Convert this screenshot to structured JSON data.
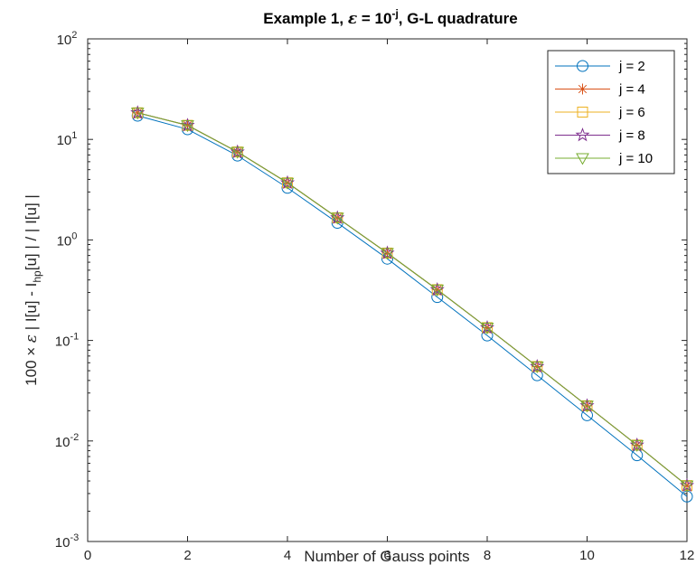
{
  "chart_data": {
    "type": "line",
    "title_parts": [
      "Example 1, ",
      "ε",
      " = 10",
      "-j",
      ", G-L quadrature"
    ],
    "xlabel": "Number of Gauss points",
    "ylabel_parts": [
      "100 × ",
      "ε",
      " | I[u] - I",
      "hp",
      "[u] | / | I[u] |"
    ],
    "xlim": [
      0,
      12
    ],
    "ylim": [
      0.001,
      100
    ],
    "yscale": "log",
    "grid": false,
    "legend_position": "top-right",
    "xticks": [
      0,
      2,
      4,
      6,
      8,
      10,
      12
    ],
    "xtick_labels": [
      "0",
      "2",
      "4",
      "6",
      "8",
      "10",
      "12"
    ],
    "yticks": [
      {
        "value": 0.001,
        "base": "10",
        "exp": "-3"
      },
      {
        "value": 0.01,
        "base": "10",
        "exp": "-2"
      },
      {
        "value": 0.1,
        "base": "10",
        "exp": "-1"
      },
      {
        "value": 1,
        "base": "10",
        "exp": "0"
      },
      {
        "value": 10,
        "base": "10",
        "exp": "1"
      },
      {
        "value": 100,
        "base": "10",
        "exp": "2"
      }
    ],
    "x": [
      1,
      2,
      3,
      4,
      5,
      6,
      7,
      8,
      9,
      10,
      11,
      12
    ],
    "series": [
      {
        "name": "j = 2",
        "color": "#0072BD",
        "marker": "circle",
        "values": [
          17.2,
          12.6,
          6.9,
          3.3,
          1.48,
          0.65,
          0.27,
          0.112,
          0.045,
          0.018,
          0.0072,
          0.0028
        ]
      },
      {
        "name": "j = 4",
        "color": "#D95319",
        "marker": "asterisk",
        "values": [
          18.4,
          13.8,
          7.5,
          3.7,
          1.66,
          0.74,
          0.32,
          0.134,
          0.055,
          0.0224,
          0.0091,
          0.0036
        ]
      },
      {
        "name": "j = 6",
        "color": "#EDB120",
        "marker": "square",
        "values": [
          18.4,
          13.8,
          7.5,
          3.7,
          1.66,
          0.74,
          0.32,
          0.134,
          0.055,
          0.0224,
          0.0091,
          0.0036
        ]
      },
      {
        "name": "j = 8",
        "color": "#7E2F8E",
        "marker": "pentagram",
        "values": [
          18.4,
          13.8,
          7.5,
          3.7,
          1.66,
          0.74,
          0.32,
          0.134,
          0.055,
          0.0224,
          0.0091,
          0.0036
        ]
      },
      {
        "name": "j = 10",
        "color": "#77AC30",
        "marker": "triangle-down",
        "values": [
          18.4,
          13.8,
          7.5,
          3.7,
          1.66,
          0.74,
          0.32,
          0.134,
          0.055,
          0.0224,
          0.0091,
          0.0036
        ]
      }
    ]
  }
}
